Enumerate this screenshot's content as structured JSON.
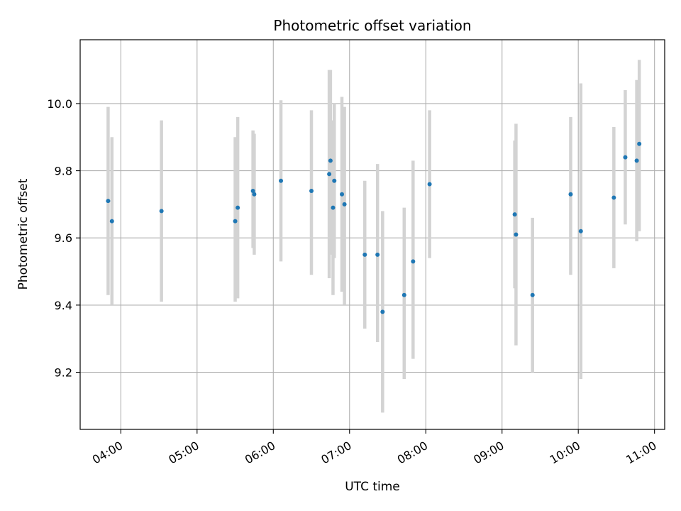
{
  "chart_data": {
    "type": "scatter",
    "title": "Photometric offset variation",
    "xlabel": "UTC time",
    "ylabel": "Photometric offset",
    "x_ticks": [
      "04:00",
      "05:00",
      "06:00",
      "07:00",
      "08:00",
      "09:00",
      "10:00",
      "11:00"
    ],
    "y_ticks": [
      9.2,
      9.4,
      9.6,
      9.8,
      10.0
    ],
    "y_tick_labels": [
      "9.2",
      "9.4",
      "9.6",
      "9.8",
      "10.0"
    ],
    "xlim": [
      "03:28",
      "11:08"
    ],
    "ylim": [
      9.03,
      10.19
    ],
    "grid": true,
    "point_color": "#1f77b4",
    "errorbar_color": "#d3d3d3",
    "points": [
      {
        "t": "03:50",
        "y": 9.71,
        "low": 9.43,
        "high": 9.99
      },
      {
        "t": "03:53",
        "y": 9.65,
        "low": 9.4,
        "high": 9.9
      },
      {
        "t": "04:32",
        "y": 9.68,
        "low": 9.41,
        "high": 9.95
      },
      {
        "t": "05:30",
        "y": 9.65,
        "low": 9.41,
        "high": 9.9
      },
      {
        "t": "05:32",
        "y": 9.69,
        "low": 9.42,
        "high": 9.96
      },
      {
        "t": "05:44",
        "y": 9.74,
        "low": 9.57,
        "high": 9.92
      },
      {
        "t": "05:45",
        "y": 9.73,
        "low": 9.55,
        "high": 9.91
      },
      {
        "t": "06:06",
        "y": 9.77,
        "low": 9.53,
        "high": 10.01
      },
      {
        "t": "06:30",
        "y": 9.74,
        "low": 9.49,
        "high": 9.98
      },
      {
        "t": "06:44",
        "y": 9.79,
        "low": 9.48,
        "high": 10.1
      },
      {
        "t": "06:45",
        "y": 9.83,
        "low": 9.55,
        "high": 10.1
      },
      {
        "t": "06:47",
        "y": 9.69,
        "low": 9.43,
        "high": 9.95
      },
      {
        "t": "06:48",
        "y": 9.77,
        "low": 9.54,
        "high": 10.0
      },
      {
        "t": "06:54",
        "y": 9.73,
        "low": 9.44,
        "high": 10.02
      },
      {
        "t": "06:56",
        "y": 9.7,
        "low": 9.4,
        "high": 9.99
      },
      {
        "t": "07:12",
        "y": 9.55,
        "low": 9.33,
        "high": 9.77
      },
      {
        "t": "07:22",
        "y": 9.55,
        "low": 9.29,
        "high": 9.82
      },
      {
        "t": "07:26",
        "y": 9.38,
        "low": 9.08,
        "high": 9.68
      },
      {
        "t": "07:43",
        "y": 9.43,
        "low": 9.18,
        "high": 9.69
      },
      {
        "t": "07:50",
        "y": 9.53,
        "low": 9.24,
        "high": 9.83
      },
      {
        "t": "08:03",
        "y": 9.76,
        "low": 9.54,
        "high": 9.98
      },
      {
        "t": "09:10",
        "y": 9.67,
        "low": 9.45,
        "high": 9.89
      },
      {
        "t": "09:11",
        "y": 9.61,
        "low": 9.28,
        "high": 9.94
      },
      {
        "t": "09:24",
        "y": 9.43,
        "low": 9.2,
        "high": 9.66
      },
      {
        "t": "09:54",
        "y": 9.73,
        "low": 9.49,
        "high": 9.96
      },
      {
        "t": "10:02",
        "y": 9.62,
        "low": 9.18,
        "high": 10.06
      },
      {
        "t": "10:28",
        "y": 9.72,
        "low": 9.51,
        "high": 9.93
      },
      {
        "t": "10:37",
        "y": 9.84,
        "low": 9.64,
        "high": 10.04
      },
      {
        "t": "10:46",
        "y": 9.83,
        "low": 9.59,
        "high": 10.07
      },
      {
        "t": "10:48",
        "y": 9.88,
        "low": 9.62,
        "high": 10.13
      }
    ]
  }
}
